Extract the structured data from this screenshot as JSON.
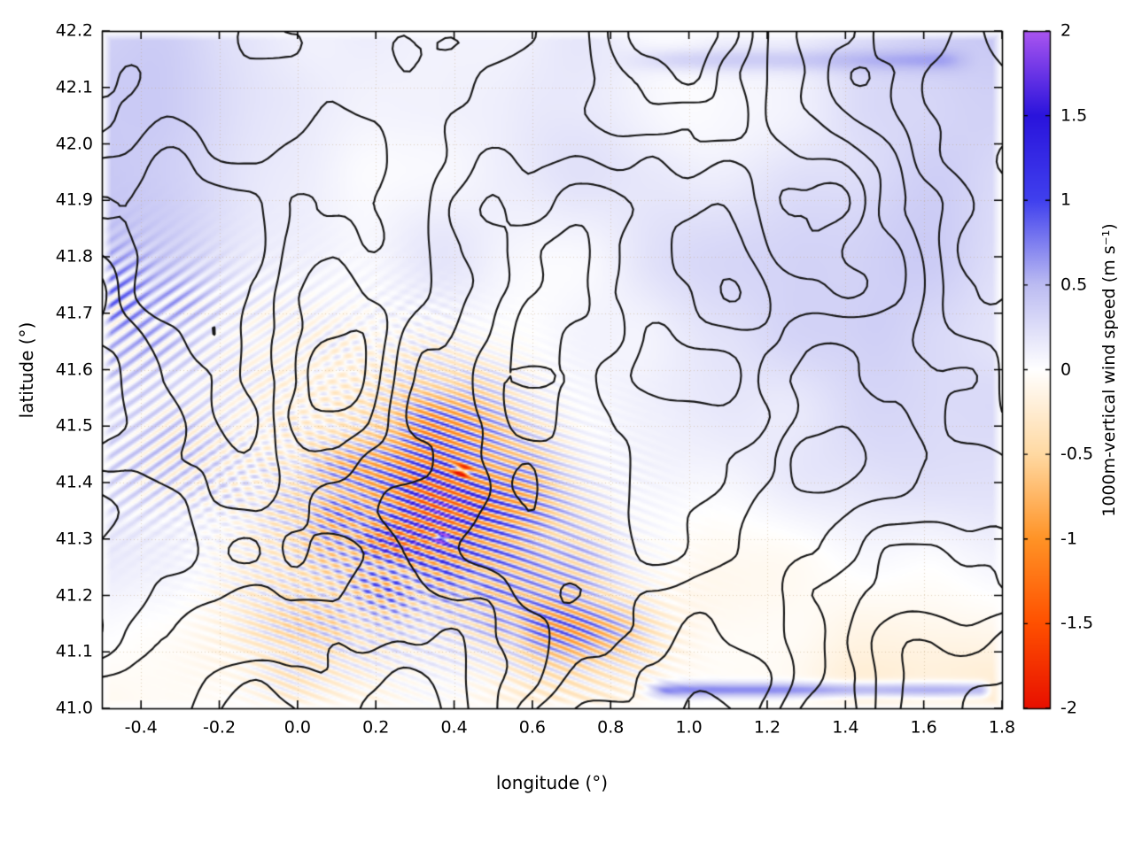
{
  "figure": {
    "background": "#ffffff",
    "border_color": "#000000",
    "contour_color": "#161616"
  },
  "chart_data": {
    "type": "heatmap",
    "title": "",
    "xlabel": "longitude (°)",
    "ylabel": "latitude (°)",
    "xlim": [
      -0.5,
      1.8
    ],
    "ylim": [
      41.0,
      42.2
    ],
    "grid": true,
    "xticks": [
      -0.4,
      -0.2,
      0,
      0.2,
      0.4,
      0.6,
      0.8,
      1,
      1.2,
      1.4,
      1.6,
      1.8
    ],
    "xtick_labels": [
      "-0.4",
      "-0.2",
      "0.0",
      "0.2",
      "0.4",
      "0.6",
      "0.8",
      "1.0",
      "1.2",
      "1.4",
      "1.6",
      "1.8"
    ],
    "yticks": [
      41,
      41.1,
      41.2,
      41.3,
      41.4,
      41.5,
      41.6,
      41.7,
      41.8,
      41.9,
      42,
      42.1,
      42.2
    ],
    "ytick_labels": [
      "41.0",
      "41.1",
      "41.2",
      "41.3",
      "41.4",
      "41.5",
      "41.6",
      "41.7",
      "41.8",
      "41.9",
      "42.0",
      "42.1",
      "42.2"
    ],
    "colorbar": {
      "label": "1000m-vertical wind speed (m s⁻¹)",
      "min": -2,
      "max": 2,
      "ticks": [
        -2,
        -1.5,
        -1,
        -0.5,
        0,
        0.5,
        1,
        1.5,
        2
      ],
      "tick_labels": [
        "-2",
        "-1.5",
        "-1",
        "-0.5",
        "0",
        "0.5",
        "1",
        "1.5",
        "2"
      ],
      "stops": [
        {
          "v": -2,
          "color": "#e81000"
        },
        {
          "v": -1.5,
          "color": "#ff5000"
        },
        {
          "v": -1,
          "color": "#ff9326"
        },
        {
          "v": -0.5,
          "color": "#ffd9a2"
        },
        {
          "v": 0,
          "color": "#ffffff"
        },
        {
          "v": 0.5,
          "color": "#bcbcf2"
        },
        {
          "v": 1,
          "color": "#4040ee"
        },
        {
          "v": 1.5,
          "color": "#2a14dc"
        },
        {
          "v": 2,
          "color": "#aa55f0"
        }
      ]
    },
    "overlay": "terrain elevation contours (black lines)",
    "field_description": "vertical wind speed at 1000 m over mountainous terrain; background near 0 m/s with pale blue patches, banded gravity-wave streaks of alternating blue (+) and orange (-) concentrated near lon 0.0-0.8, lat 41.1-41.5, small extreme spots reaching ±2 m/s"
  }
}
